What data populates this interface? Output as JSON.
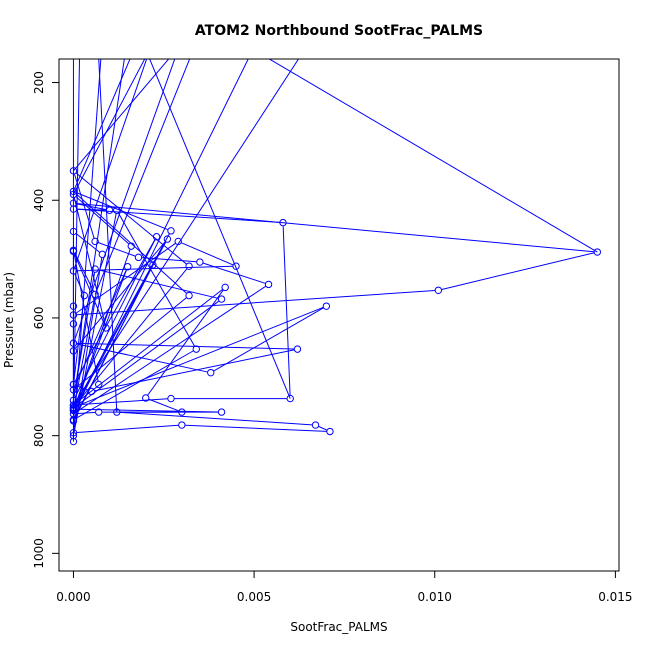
{
  "chart_data": {
    "type": "line",
    "title": "ATOM2 Northbound SootFrac_PALMS",
    "xlabel": "SootFrac_PALMS",
    "ylabel": "Pressure (mbar)",
    "xlim": [
      -0.0004,
      0.0151
    ],
    "ylim": [
      1030,
      160
    ],
    "y_reversed": true,
    "x_ticks": [
      0.0,
      0.005,
      0.01,
      0.015
    ],
    "x_tick_labels": [
      "0.000",
      "0.005",
      "0.010",
      "0.015"
    ],
    "y_ticks": [
      200,
      400,
      600,
      800,
      1000
    ],
    "y_tick_labels": [
      "200",
      "400",
      "600",
      "800",
      "1000"
    ],
    "grid": false,
    "series_color": "#0000ff",
    "points": [
      [
        0.0,
        810
      ],
      [
        0.0,
        795
      ],
      [
        0.003,
        782
      ],
      [
        0.0071,
        793
      ],
      [
        0.0067,
        782
      ],
      [
        0.0012,
        760
      ],
      [
        0.0041,
        760
      ],
      [
        0.0,
        755
      ],
      [
        0.0,
        748
      ],
      [
        0.0027,
        737
      ],
      [
        0.006,
        737
      ],
      [
        0.0058,
        438
      ],
      [
        0.0,
        415
      ],
      [
        0.001,
        417
      ],
      [
        0.0,
        405
      ],
      [
        0.0145,
        488
      ],
      [
        0.0101,
        553
      ],
      [
        0.0,
        595
      ],
      [
        0.0029,
        470
      ],
      [
        0.0045,
        512
      ],
      [
        0.0,
        520
      ],
      [
        0.0003,
        562
      ],
      [
        0.0,
        713
      ],
      [
        0.0005,
        725
      ],
      [
        0.0062,
        653
      ],
      [
        0.0,
        643
      ],
      [
        0.0038,
        693
      ],
      [
        0.007,
        580
      ],
      [
        0.0,
        752
      ],
      [
        0.0032,
        512
      ],
      [
        0.0,
        350
      ],
      [
        0.0006,
        470
      ],
      [
        0.0018,
        497
      ],
      [
        0.0035,
        505
      ],
      [
        0.0054,
        543
      ],
      [
        0.0,
        763
      ],
      [
        0.0007,
        760
      ],
      [
        0.003,
        760
      ],
      [
        0.002,
        736
      ],
      [
        0.0042,
        548
      ],
      [
        0.0,
        748
      ],
      [
        0.0,
        610
      ],
      [
        0.0,
        580
      ],
      [
        0.0,
        487
      ],
      [
        0.0009,
        617
      ],
      [
        0.0,
        390
      ],
      [
        0.0016,
        478
      ],
      [
        0.0,
        757
      ],
      [
        0.0026,
        466
      ],
      [
        0.0,
        656
      ],
      [
        0.0,
        775
      ],
      [
        0.0022,
        510
      ],
      [
        0.0,
        773
      ],
      [
        0.0034,
        653
      ],
      [
        0.0012,
        417
      ],
      [
        0.0,
        800
      ],
      [
        0.0008,
        492
      ],
      [
        0.0,
        453
      ],
      [
        0.0,
        713
      ],
      [
        0.0023,
        462
      ],
      [
        0.0,
        740
      ],
      [
        0.0006,
        517
      ],
      [
        0.0041,
        568
      ],
      [
        0.0,
        753
      ],
      [
        0.0027,
        452
      ],
      [
        0.0,
        385
      ],
      [
        0.0032,
        562
      ],
      [
        0.0,
        722
      ],
      [
        0.0015,
        513
      ],
      [
        0.0,
        757
      ],
      [
        0.0006,
        560
      ],
      [
        0.0,
        485
      ],
      [
        0.0007,
        713
      ]
    ],
    "offscale_top": [
      [
        0.0,
        40
      ],
      [
        0.0006,
        40
      ],
      [
        0.0013,
        40
      ],
      [
        0.0021,
        40
      ],
      [
        0.0027,
        40
      ],
      [
        0.0035,
        40
      ],
      [
        0.0043,
        40
      ],
      [
        0.0058,
        40
      ],
      [
        0.0075,
        40
      ],
      [
        0.003,
        40
      ],
      [
        0.0002,
        40
      ],
      [
        0.0009,
        40
      ],
      [
        0.0017,
        40
      ],
      [
        0.0024,
        40
      ],
      [
        0.004,
        40
      ]
    ]
  }
}
